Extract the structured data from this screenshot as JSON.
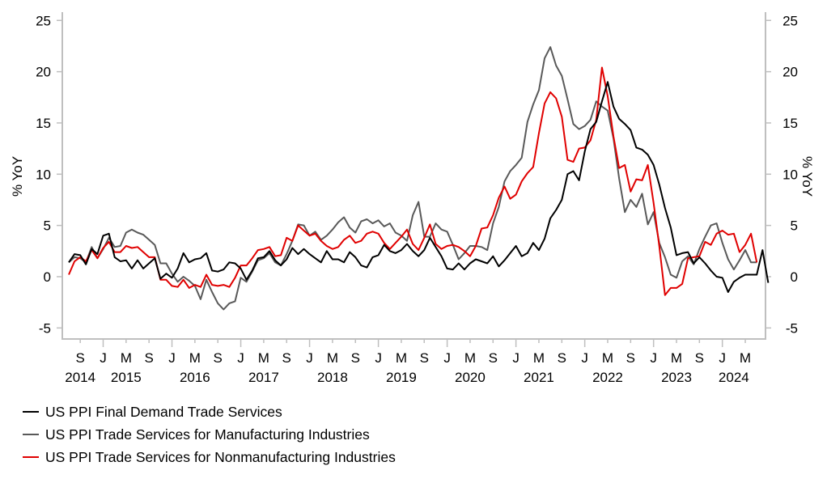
{
  "chart_data": {
    "type": "line",
    "title": "",
    "xlabel": "",
    "ylabel": "% YoY",
    "ylabel_right": "% YoY",
    "ylim": [
      -6,
      26
    ],
    "yticks": [
      -5,
      0,
      5,
      10,
      15,
      20,
      25
    ],
    "ytick_labels": [
      "-5",
      "0",
      "5",
      "10",
      "15",
      "20",
      "25"
    ],
    "x_start": "2014-07",
    "x_end": "2024-07",
    "x_frequency": "monthly",
    "x_range": [
      "2014-06",
      "2024-08"
    ],
    "xtick_months": [
      "2014-09",
      "2015-01",
      "2015-05",
      "2015-09",
      "2016-01",
      "2016-05",
      "2016-09",
      "2017-01",
      "2017-05",
      "2017-09",
      "2018-01",
      "2018-05",
      "2018-09",
      "2019-01",
      "2019-05",
      "2019-09",
      "2020-01",
      "2020-05",
      "2020-09",
      "2021-01",
      "2021-05",
      "2021-09",
      "2022-01",
      "2022-05",
      "2022-09",
      "2023-01",
      "2023-05",
      "2023-09",
      "2024-01",
      "2024-05"
    ],
    "xtick_labels": [
      "S",
      "J",
      "M",
      "S",
      "J",
      "M",
      "S",
      "J",
      "M",
      "S",
      "J",
      "M",
      "S",
      "J",
      "M",
      "S",
      "J",
      "M",
      "S",
      "J",
      "M",
      "S",
      "J",
      "M",
      "S",
      "J",
      "M",
      "S",
      "J",
      "M"
    ],
    "year_labels": [
      {
        "label": "2014",
        "month": "2014-09"
      },
      {
        "label": "2015",
        "month": "2015-05"
      },
      {
        "label": "2016",
        "month": "2016-05"
      },
      {
        "label": "2017",
        "month": "2017-05"
      },
      {
        "label": "2018",
        "month": "2018-05"
      },
      {
        "label": "2019",
        "month": "2019-05"
      },
      {
        "label": "2020",
        "month": "2020-05"
      },
      {
        "label": "2021",
        "month": "2021-05"
      },
      {
        "label": "2022",
        "month": "2022-05"
      },
      {
        "label": "2023",
        "month": "2023-05"
      },
      {
        "label": "2024",
        "month": "2024-03"
      }
    ],
    "grid": false,
    "legend_position": "bottom-left",
    "series": [
      {
        "name": "US PPI Final Demand Trade Services",
        "color": "#000000",
        "values": [
          1.4,
          2.2,
          2.1,
          1.2,
          2.7,
          2.2,
          4.0,
          4.2,
          1.9,
          1.5,
          1.6,
          0.8,
          1.6,
          0.8,
          1.3,
          1.8,
          -0.2,
          0.3,
          -0.1,
          0.8,
          2.3,
          1.4,
          1.7,
          1.8,
          2.3,
          0.6,
          0.5,
          0.7,
          1.4,
          1.3,
          0.8,
          -0.3,
          0.6,
          1.8,
          1.9,
          2.5,
          1.6,
          1.1,
          1.7,
          2.8,
          2.2,
          2.7,
          2.2,
          1.8,
          1.4,
          2.5,
          1.7,
          1.7,
          1.4,
          2.4,
          1.9,
          1.1,
          0.9,
          1.9,
          2.1,
          3.1,
          2.5,
          2.3,
          2.6,
          3.2,
          2.5,
          2.0,
          2.6,
          3.8,
          2.9,
          2.0,
          0.8,
          0.7,
          1.3,
          0.7,
          1.3,
          1.7,
          1.5,
          1.3,
          2.0,
          1.0,
          1.6,
          2.3,
          3.0,
          2.0,
          2.3,
          3.3,
          2.6,
          3.7,
          5.7,
          6.5,
          7.5,
          10.0,
          10.3,
          9.4,
          12.2,
          14.4,
          15.1,
          17.1,
          19.0,
          16.6,
          15.4,
          14.9,
          14.3,
          12.6,
          12.4,
          11.9,
          10.9,
          9.0,
          6.7,
          4.8,
          2.1,
          2.3,
          2.4,
          1.3,
          1.9,
          1.3,
          0.6,
          0.0,
          -0.1,
          -1.5,
          -0.5,
          -0.1,
          0.2,
          0.2,
          0.2,
          2.6,
          -0.6
        ]
      },
      {
        "name": "US PPI Trade Services for Manufacturing Industries",
        "color": "#595959",
        "values": [
          1.4,
          1.9,
          1.8,
          1.4,
          2.9,
          1.8,
          2.7,
          3.8,
          2.9,
          3.0,
          4.3,
          4.6,
          4.3,
          4.1,
          3.6,
          3.1,
          1.3,
          1.3,
          0.3,
          -0.5,
          0.0,
          -0.4,
          -0.9,
          -2.2,
          -0.3,
          -1.5,
          -2.6,
          -3.2,
          -2.6,
          -2.4,
          -0.1,
          -0.5,
          0.5,
          1.6,
          1.8,
          2.3,
          1.4,
          1.1,
          2.2,
          3.5,
          5.1,
          5.0,
          4.0,
          4.4,
          3.6,
          4.0,
          4.6,
          5.3,
          5.8,
          4.8,
          4.3,
          5.4,
          5.6,
          5.2,
          5.5,
          4.9,
          5.2,
          4.3,
          4.0,
          3.5,
          6.0,
          7.3,
          3.9,
          3.9,
          5.2,
          4.6,
          4.4,
          3.1,
          1.7,
          2.3,
          3.0,
          3.0,
          2.9,
          2.6,
          5.2,
          6.8,
          9.3,
          10.3,
          10.9,
          11.6,
          15.1,
          16.8,
          18.2,
          21.3,
          22.4,
          20.6,
          19.6,
          17.3,
          14.9,
          14.4,
          14.7,
          15.3,
          17.1,
          16.6,
          16.2,
          13.5,
          9.6,
          6.3,
          7.5,
          6.8,
          8.1,
          5.1,
          6.3,
          3.3,
          1.9,
          0.2,
          -0.1,
          1.5,
          2.0,
          1.2,
          2.7,
          3.9,
          5.0,
          5.2,
          3.3,
          1.7,
          0.7,
          1.6,
          2.6,
          1.4,
          1.4
        ]
      },
      {
        "name": "US PPI Trade Services for Nonmanufacturing Industries",
        "color": "#e00000",
        "values": [
          0.2,
          1.5,
          1.9,
          1.5,
          2.6,
          1.8,
          2.8,
          3.4,
          2.4,
          2.4,
          3.0,
          2.8,
          2.9,
          2.4,
          1.9,
          1.9,
          -0.3,
          -0.3,
          -0.9,
          -1.0,
          -0.3,
          -1.1,
          -0.8,
          -1.0,
          0.2,
          -0.8,
          -0.9,
          -0.8,
          -1.0,
          -0.1,
          1.1,
          1.1,
          1.8,
          2.6,
          2.7,
          2.9,
          2.0,
          2.1,
          3.8,
          3.5,
          5.0,
          4.5,
          4.0,
          4.2,
          3.5,
          3.0,
          2.7,
          2.9,
          3.6,
          4.0,
          3.3,
          3.5,
          4.2,
          4.4,
          4.2,
          3.3,
          2.7,
          3.3,
          3.9,
          4.6,
          3.2,
          2.6,
          3.8,
          5.1,
          3.2,
          2.7,
          3.0,
          3.1,
          2.9,
          2.5,
          2.0,
          3.0,
          4.7,
          4.8,
          6.0,
          7.7,
          8.8,
          7.6,
          8.0,
          9.3,
          10.1,
          10.7,
          14.0,
          16.9,
          18.0,
          17.4,
          15.6,
          11.4,
          11.2,
          12.5,
          12.6,
          13.3,
          15.3,
          20.4,
          17.6,
          13.7,
          10.6,
          10.9,
          8.3,
          9.5,
          9.4,
          10.9,
          7.2,
          3.0,
          -1.8,
          -1.1,
          -1.1,
          -0.7,
          1.8,
          1.9,
          2.0,
          3.4,
          3.1,
          4.2,
          4.5,
          4.1,
          4.2,
          2.4,
          3.1,
          4.2,
          1.4
        ]
      }
    ]
  },
  "legend": {
    "items": [
      {
        "label": "US PPI Final Demand Trade Services",
        "color": "#000000"
      },
      {
        "label": "US PPI Trade Services for Manufacturing Industries",
        "color": "#595959"
      },
      {
        "label": "US PPI Trade Services for Nonmanufacturing Industries",
        "color": "#e00000"
      }
    ]
  }
}
